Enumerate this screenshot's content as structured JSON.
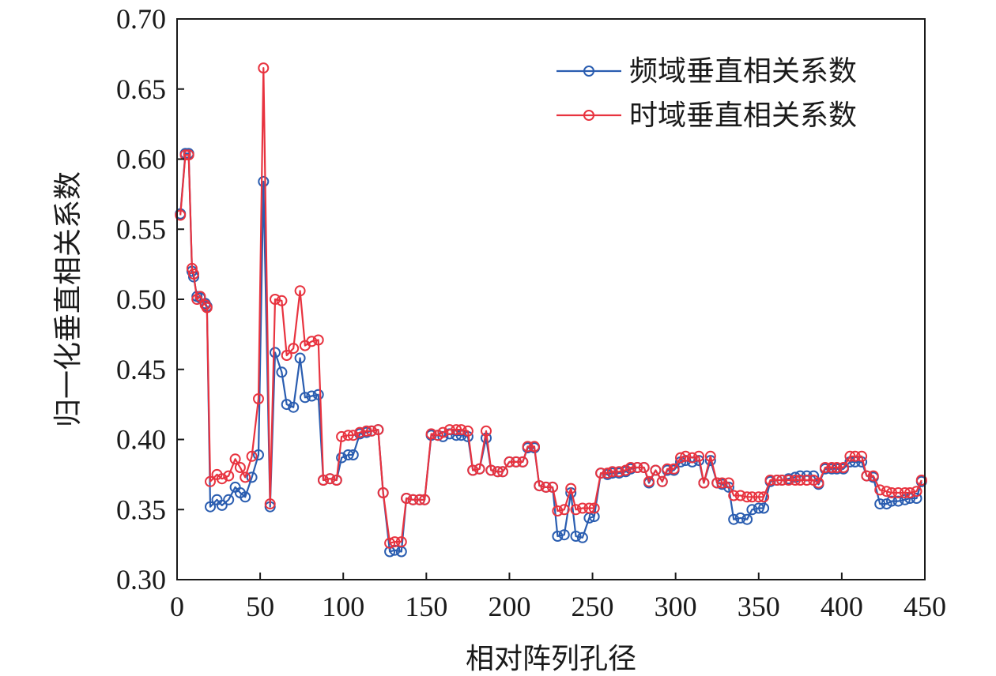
{
  "chart_data": {
    "type": "line",
    "xlabel": "相对阵列孔径",
    "ylabel": "归一化垂直相关系数",
    "xlim": [
      0,
      450
    ],
    "ylim": [
      0.3,
      0.7
    ],
    "xticks": [
      "0",
      "50",
      "100",
      "150",
      "200",
      "250",
      "300",
      "350",
      "400",
      "450"
    ],
    "yticks": [
      "0.30",
      "0.35",
      "0.40",
      "0.45",
      "0.50",
      "0.55",
      "0.60",
      "0.65",
      "0.70"
    ],
    "legend_position": "top-right",
    "grid": false,
    "marker": "open-circle",
    "series": [
      {
        "name": "频域垂直相关系数",
        "color": "#2a5db0",
        "points": [
          [
            2,
            0.561
          ],
          [
            5,
            0.604
          ],
          [
            7,
            0.604
          ],
          [
            9,
            0.52
          ],
          [
            10,
            0.516
          ],
          [
            12,
            0.502
          ],
          [
            14,
            0.501
          ],
          [
            17,
            0.497
          ],
          [
            18,
            0.495
          ],
          [
            20,
            0.352
          ],
          [
            24,
            0.357
          ],
          [
            27,
            0.353
          ],
          [
            31,
            0.357
          ],
          [
            35,
            0.366
          ],
          [
            38,
            0.362
          ],
          [
            41,
            0.359
          ],
          [
            45,
            0.373
          ],
          [
            49,
            0.389
          ],
          [
            52,
            0.584
          ],
          [
            56,
            0.352
          ],
          [
            59,
            0.462
          ],
          [
            63,
            0.448
          ],
          [
            66,
            0.425
          ],
          [
            70,
            0.423
          ],
          [
            74,
            0.458
          ],
          [
            77,
            0.43
          ],
          [
            81,
            0.431
          ],
          [
            85,
            0.432
          ],
          [
            88,
            0.371
          ],
          [
            92,
            0.372
          ],
          [
            96,
            0.371
          ],
          [
            99,
            0.387
          ],
          [
            103,
            0.389
          ],
          [
            106,
            0.389
          ],
          [
            110,
            0.404
          ],
          [
            114,
            0.405
          ],
          [
            117,
            0.406
          ],
          [
            121,
            0.407
          ],
          [
            124,
            0.362
          ],
          [
            128,
            0.32
          ],
          [
            131,
            0.321
          ],
          [
            135,
            0.32
          ],
          [
            138,
            0.358
          ],
          [
            142,
            0.357
          ],
          [
            146,
            0.357
          ],
          [
            149,
            0.357
          ],
          [
            153,
            0.403
          ],
          [
            157,
            0.403
          ],
          [
            160,
            0.402
          ],
          [
            164,
            0.404
          ],
          [
            168,
            0.403
          ],
          [
            171,
            0.403
          ],
          [
            175,
            0.402
          ],
          [
            178,
            0.378
          ],
          [
            182,
            0.379
          ],
          [
            186,
            0.401
          ],
          [
            189,
            0.378
          ],
          [
            193,
            0.377
          ],
          [
            196,
            0.377
          ],
          [
            200,
            0.384
          ],
          [
            204,
            0.384
          ],
          [
            208,
            0.384
          ],
          [
            211,
            0.394
          ],
          [
            215,
            0.394
          ],
          [
            218,
            0.367
          ],
          [
            222,
            0.366
          ],
          [
            226,
            0.366
          ],
          [
            229,
            0.331
          ],
          [
            233,
            0.332
          ],
          [
            237,
            0.362
          ],
          [
            240,
            0.331
          ],
          [
            244,
            0.33
          ],
          [
            248,
            0.344
          ],
          [
            251,
            0.345
          ],
          [
            255,
            0.376
          ],
          [
            259,
            0.375
          ],
          [
            262,
            0.376
          ],
          [
            266,
            0.376
          ],
          [
            270,
            0.377
          ],
          [
            273,
            0.379
          ],
          [
            277,
            0.38
          ],
          [
            281,
            0.38
          ],
          [
            284,
            0.369
          ],
          [
            288,
            0.378
          ],
          [
            292,
            0.37
          ],
          [
            295,
            0.378
          ],
          [
            299,
            0.378
          ],
          [
            303,
            0.384
          ],
          [
            306,
            0.385
          ],
          [
            310,
            0.384
          ],
          [
            314,
            0.385
          ],
          [
            317,
            0.369
          ],
          [
            321,
            0.385
          ],
          [
            325,
            0.369
          ],
          [
            328,
            0.368
          ],
          [
            332,
            0.366
          ],
          [
            335,
            0.343
          ],
          [
            339,
            0.344
          ],
          [
            343,
            0.343
          ],
          [
            346,
            0.35
          ],
          [
            350,
            0.351
          ],
          [
            353,
            0.351
          ],
          [
            357,
            0.37
          ],
          [
            361,
            0.371
          ],
          [
            364,
            0.371
          ],
          [
            368,
            0.372
          ],
          [
            372,
            0.373
          ],
          [
            375,
            0.374
          ],
          [
            379,
            0.374
          ],
          [
            383,
            0.374
          ],
          [
            386,
            0.368
          ],
          [
            390,
            0.379
          ],
          [
            394,
            0.379
          ],
          [
            397,
            0.379
          ],
          [
            401,
            0.379
          ],
          [
            405,
            0.384
          ],
          [
            408,
            0.384
          ],
          [
            412,
            0.384
          ],
          [
            415,
            0.374
          ],
          [
            419,
            0.373
          ],
          [
            423,
            0.354
          ],
          [
            427,
            0.354
          ],
          [
            430,
            0.356
          ],
          [
            434,
            0.356
          ],
          [
            438,
            0.357
          ],
          [
            441,
            0.358
          ],
          [
            445,
            0.358
          ],
          [
            448,
            0.37
          ]
        ]
      },
      {
        "name": "时域垂直相关系数",
        "color": "#e8333f",
        "points": [
          [
            2,
            0.56
          ],
          [
            5,
            0.603
          ],
          [
            7,
            0.603
          ],
          [
            9,
            0.522
          ],
          [
            10,
            0.518
          ],
          [
            12,
            0.5
          ],
          [
            14,
            0.502
          ],
          [
            17,
            0.496
          ],
          [
            18,
            0.494
          ],
          [
            20,
            0.37
          ],
          [
            24,
            0.375
          ],
          [
            27,
            0.372
          ],
          [
            31,
            0.374
          ],
          [
            35,
            0.386
          ],
          [
            38,
            0.38
          ],
          [
            41,
            0.373
          ],
          [
            45,
            0.388
          ],
          [
            49,
            0.429
          ],
          [
            52,
            0.665
          ],
          [
            56,
            0.354
          ],
          [
            59,
            0.5
          ],
          [
            63,
            0.499
          ],
          [
            66,
            0.46
          ],
          [
            70,
            0.465
          ],
          [
            74,
            0.506
          ],
          [
            77,
            0.467
          ],
          [
            81,
            0.47
          ],
          [
            85,
            0.471
          ],
          [
            88,
            0.371
          ],
          [
            92,
            0.372
          ],
          [
            96,
            0.371
          ],
          [
            99,
            0.402
          ],
          [
            103,
            0.403
          ],
          [
            106,
            0.403
          ],
          [
            110,
            0.405
          ],
          [
            114,
            0.406
          ],
          [
            117,
            0.406
          ],
          [
            121,
            0.407
          ],
          [
            124,
            0.362
          ],
          [
            128,
            0.326
          ],
          [
            131,
            0.327
          ],
          [
            135,
            0.327
          ],
          [
            138,
            0.358
          ],
          [
            142,
            0.357
          ],
          [
            146,
            0.357
          ],
          [
            149,
            0.357
          ],
          [
            153,
            0.404
          ],
          [
            157,
            0.403
          ],
          [
            160,
            0.405
          ],
          [
            164,
            0.407
          ],
          [
            168,
            0.407
          ],
          [
            171,
            0.407
          ],
          [
            175,
            0.406
          ],
          [
            178,
            0.378
          ],
          [
            182,
            0.379
          ],
          [
            186,
            0.406
          ],
          [
            189,
            0.378
          ],
          [
            193,
            0.377
          ],
          [
            196,
            0.377
          ],
          [
            200,
            0.384
          ],
          [
            204,
            0.384
          ],
          [
            208,
            0.384
          ],
          [
            211,
            0.395
          ],
          [
            215,
            0.395
          ],
          [
            218,
            0.367
          ],
          [
            222,
            0.366
          ],
          [
            226,
            0.366
          ],
          [
            229,
            0.349
          ],
          [
            233,
            0.35
          ],
          [
            237,
            0.365
          ],
          [
            240,
            0.35
          ],
          [
            244,
            0.351
          ],
          [
            248,
            0.351
          ],
          [
            251,
            0.351
          ],
          [
            255,
            0.376
          ],
          [
            259,
            0.376
          ],
          [
            262,
            0.377
          ],
          [
            266,
            0.377
          ],
          [
            270,
            0.378
          ],
          [
            273,
            0.38
          ],
          [
            277,
            0.38
          ],
          [
            281,
            0.38
          ],
          [
            284,
            0.37
          ],
          [
            288,
            0.378
          ],
          [
            292,
            0.37
          ],
          [
            295,
            0.379
          ],
          [
            299,
            0.379
          ],
          [
            303,
            0.387
          ],
          [
            306,
            0.388
          ],
          [
            310,
            0.387
          ],
          [
            314,
            0.388
          ],
          [
            317,
            0.369
          ],
          [
            321,
            0.388
          ],
          [
            325,
            0.369
          ],
          [
            328,
            0.369
          ],
          [
            332,
            0.369
          ],
          [
            335,
            0.36
          ],
          [
            339,
            0.36
          ],
          [
            343,
            0.359
          ],
          [
            346,
            0.359
          ],
          [
            350,
            0.359
          ],
          [
            353,
            0.359
          ],
          [
            357,
            0.371
          ],
          [
            361,
            0.371
          ],
          [
            364,
            0.371
          ],
          [
            368,
            0.371
          ],
          [
            372,
            0.371
          ],
          [
            375,
            0.371
          ],
          [
            379,
            0.371
          ],
          [
            383,
            0.371
          ],
          [
            386,
            0.369
          ],
          [
            390,
            0.38
          ],
          [
            394,
            0.38
          ],
          [
            397,
            0.38
          ],
          [
            401,
            0.38
          ],
          [
            405,
            0.388
          ],
          [
            408,
            0.388
          ],
          [
            412,
            0.388
          ],
          [
            415,
            0.374
          ],
          [
            419,
            0.374
          ],
          [
            423,
            0.364
          ],
          [
            427,
            0.363
          ],
          [
            430,
            0.362
          ],
          [
            434,
            0.362
          ],
          [
            438,
            0.362
          ],
          [
            441,
            0.362
          ],
          [
            445,
            0.363
          ],
          [
            448,
            0.371
          ]
        ]
      }
    ]
  }
}
